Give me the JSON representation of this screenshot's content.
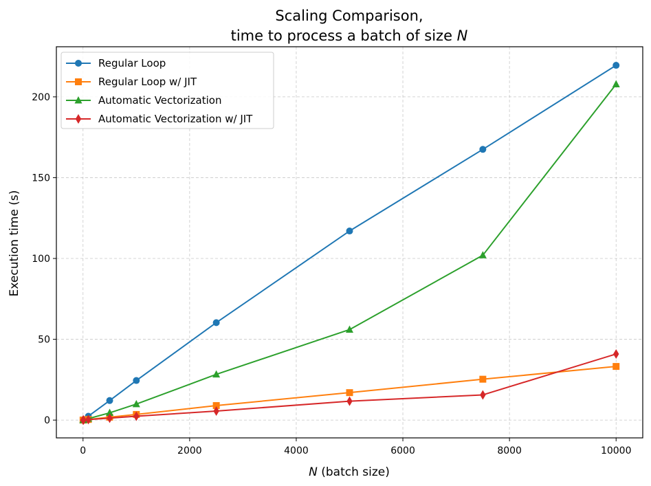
{
  "chart_data": {
    "type": "line",
    "title_line1": "Scaling Comparison,",
    "title_line2_prefix": "time to process a batch of size ",
    "title_line2_var": "N",
    "xlabel_var": "N",
    "xlabel_rest": " (batch size)",
    "ylabel": "Execution time (s)",
    "xlim": [
      -500,
      10500
    ],
    "ylim": [
      -11,
      231
    ],
    "xticks": [
      0,
      2000,
      4000,
      6000,
      8000,
      10000
    ],
    "yticks": [
      0,
      50,
      100,
      150,
      200
    ],
    "grid": true,
    "grid_style": "dashed",
    "legend_position": "top-left",
    "x": [
      1,
      10,
      100,
      500,
      1000,
      2500,
      5000,
      7500,
      10000
    ],
    "series": [
      {
        "name": "Regular Loop",
        "color": "#1f77b4",
        "marker": "circle",
        "values": [
          0.05,
          0.3,
          2.4,
          12.1,
          24.5,
          60.3,
          117.0,
          167.5,
          219.5
        ]
      },
      {
        "name": "Regular Loop w/ JIT",
        "color": "#ff7f0e",
        "marker": "square",
        "values": [
          0.01,
          0.05,
          0.4,
          1.8,
          3.5,
          9.0,
          17.0,
          25.3,
          33.2
        ]
      },
      {
        "name": "Automatic Vectorization",
        "color": "#2ca02c",
        "marker": "triangle",
        "values": [
          0.02,
          0.1,
          0.9,
          4.5,
          9.9,
          28.3,
          56.0,
          102.0,
          207.8
        ]
      },
      {
        "name": "Automatic Vectorization w/ JIT",
        "color": "#d62728",
        "marker": "diamond",
        "values": [
          0.01,
          0.05,
          0.3,
          1.2,
          2.4,
          5.6,
          11.7,
          15.6,
          40.9
        ]
      }
    ]
  }
}
